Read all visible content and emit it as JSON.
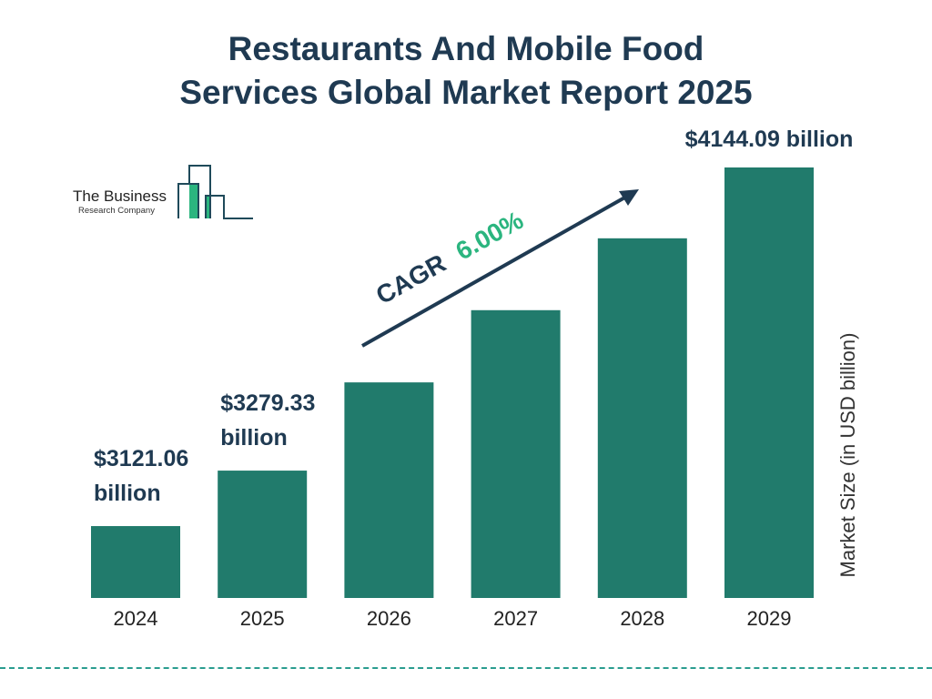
{
  "title_line1": "Restaurants And Mobile Food",
  "title_line2": "Services Global Market Report 2025",
  "logo": {
    "line1": "The Business",
    "line2": "Research Company"
  },
  "cagr": {
    "label": "CAGR",
    "value": "6.00%",
    "color": "#2bb57f"
  },
  "colors": {
    "bar": "#217b6c",
    "text": "#1f3a52"
  },
  "chart_data": {
    "type": "bar",
    "title": "Restaurants And Mobile Food Services Global Market Report 2025",
    "categories": [
      "2024",
      "2025",
      "2026",
      "2027",
      "2028",
      "2029"
    ],
    "values": [
      3121.06,
      3279.33,
      3531,
      3737,
      3942,
      4144.09
    ],
    "data_labels": [
      [
        "$3121.06",
        "billion"
      ],
      [
        "$3279.33",
        "billion"
      ],
      null,
      null,
      null,
      [
        "$4144.09 billion"
      ]
    ],
    "ylabel": "Market Size (in USD billion)",
    "xlabel": "",
    "grid": false,
    "legend": "none"
  }
}
